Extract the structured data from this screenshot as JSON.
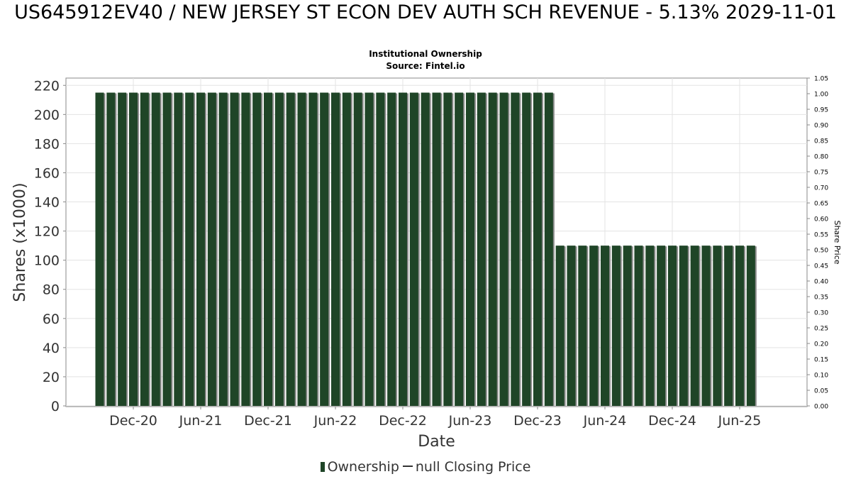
{
  "header": {
    "title": "US645912EV40 / NEW JERSEY ST ECON DEV AUTH SCH REVENUE - 5.13% 2029-11-01",
    "subtitle_1": "Institutional Ownership",
    "subtitle_2": "Source: Fintel.io"
  },
  "legend": {
    "ownership_label": "Ownership",
    "price_label": "null Closing Price"
  },
  "colors": {
    "bar": "#1f4527",
    "bar_shadow": "#8c8c8c",
    "grid": "#e3e3e3",
    "axis": "#888888"
  },
  "chart_data": {
    "type": "bar",
    "title": "US645912EV40 / NEW JERSEY ST ECON DEV AUTH SCH REVENUE - 5.13% 2029-11-01",
    "xlabel": "Date",
    "ylabel": "Shares (x1000)",
    "y2label": "Share Price",
    "ylim": [
      0,
      225
    ],
    "y2lim": [
      0,
      1.05
    ],
    "yticks": [
      0,
      20,
      40,
      60,
      80,
      100,
      120,
      140,
      160,
      180,
      200,
      220
    ],
    "y2ticks": [
      "0.00",
      "0.05",
      "0.10",
      "0.15",
      "0.20",
      "0.25",
      "0.30",
      "0.35",
      "0.40",
      "0.45",
      "0.50",
      "0.55",
      "0.60",
      "0.65",
      "0.70",
      "0.75",
      "0.80",
      "0.85",
      "0.90",
      "0.95",
      "1.00",
      "1.05"
    ],
    "xrange": [
      "2020-06",
      "2025-12"
    ],
    "xticks": [
      {
        "label": "Dec-20",
        "date": "2020-12"
      },
      {
        "label": "Jun-21",
        "date": "2021-06"
      },
      {
        "label": "Dec-21",
        "date": "2021-12"
      },
      {
        "label": "Jun-22",
        "date": "2022-06"
      },
      {
        "label": "Dec-22",
        "date": "2022-12"
      },
      {
        "label": "Jun-23",
        "date": "2023-06"
      },
      {
        "label": "Dec-23",
        "date": "2023-12"
      },
      {
        "label": "Jun-24",
        "date": "2024-06"
      },
      {
        "label": "Dec-24",
        "date": "2024-12"
      },
      {
        "label": "Jun-25",
        "date": "2025-06"
      }
    ],
    "grid": true,
    "legend_position": "bottom",
    "series": [
      {
        "name": "Ownership",
        "points": [
          {
            "date": "2020-09",
            "value": 215
          },
          {
            "date": "2020-10",
            "value": 215
          },
          {
            "date": "2020-11",
            "value": 215
          },
          {
            "date": "2020-12",
            "value": 215
          },
          {
            "date": "2021-01",
            "value": 215
          },
          {
            "date": "2021-02",
            "value": 215
          },
          {
            "date": "2021-03",
            "value": 215
          },
          {
            "date": "2021-04",
            "value": 215
          },
          {
            "date": "2021-05",
            "value": 215
          },
          {
            "date": "2021-06",
            "value": 215
          },
          {
            "date": "2021-07",
            "value": 215
          },
          {
            "date": "2021-08",
            "value": 215
          },
          {
            "date": "2021-09",
            "value": 215
          },
          {
            "date": "2021-10",
            "value": 215
          },
          {
            "date": "2021-11",
            "value": 215
          },
          {
            "date": "2021-12",
            "value": 215
          },
          {
            "date": "2022-01",
            "value": 215
          },
          {
            "date": "2022-02",
            "value": 215
          },
          {
            "date": "2022-03",
            "value": 215
          },
          {
            "date": "2022-04",
            "value": 215
          },
          {
            "date": "2022-05",
            "value": 215
          },
          {
            "date": "2022-06",
            "value": 215
          },
          {
            "date": "2022-07",
            "value": 215
          },
          {
            "date": "2022-08",
            "value": 215
          },
          {
            "date": "2022-09",
            "value": 215
          },
          {
            "date": "2022-10",
            "value": 215
          },
          {
            "date": "2022-11",
            "value": 215
          },
          {
            "date": "2022-12",
            "value": 215
          },
          {
            "date": "2023-01",
            "value": 215
          },
          {
            "date": "2023-02",
            "value": 215
          },
          {
            "date": "2023-03",
            "value": 215
          },
          {
            "date": "2023-04",
            "value": 215
          },
          {
            "date": "2023-05",
            "value": 215
          },
          {
            "date": "2023-06",
            "value": 215
          },
          {
            "date": "2023-07",
            "value": 215
          },
          {
            "date": "2023-08",
            "value": 215
          },
          {
            "date": "2023-09",
            "value": 215
          },
          {
            "date": "2023-10",
            "value": 215
          },
          {
            "date": "2023-11",
            "value": 215
          },
          {
            "date": "2023-12",
            "value": 215
          },
          {
            "date": "2024-01",
            "value": 215
          },
          {
            "date": "2024-02",
            "value": 110
          },
          {
            "date": "2024-03",
            "value": 110
          },
          {
            "date": "2024-04",
            "value": 110
          },
          {
            "date": "2024-05",
            "value": 110
          },
          {
            "date": "2024-06",
            "value": 110
          },
          {
            "date": "2024-07",
            "value": 110
          },
          {
            "date": "2024-08",
            "value": 110
          },
          {
            "date": "2024-09",
            "value": 110
          },
          {
            "date": "2024-10",
            "value": 110
          },
          {
            "date": "2024-11",
            "value": 110
          },
          {
            "date": "2024-12",
            "value": 110
          },
          {
            "date": "2025-01",
            "value": 110
          },
          {
            "date": "2025-02",
            "value": 110
          },
          {
            "date": "2025-03",
            "value": 110
          },
          {
            "date": "2025-04",
            "value": 110
          },
          {
            "date": "2025-05",
            "value": 110
          },
          {
            "date": "2025-06",
            "value": 110
          },
          {
            "date": "2025-07",
            "value": 110
          }
        ]
      }
    ]
  }
}
